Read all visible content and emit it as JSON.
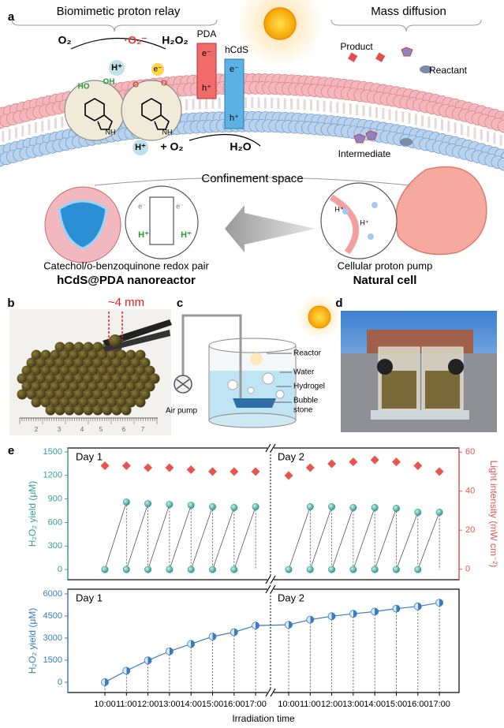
{
  "panel_labels": [
    "a",
    "b",
    "c",
    "d",
    "e"
  ],
  "panel_a": {
    "titles": [
      "Biomimetic proton relay",
      "Mass diffusion"
    ],
    "labels": [
      "O₂",
      "·O₂⁻",
      "H₂O₂",
      "PDA",
      "hCdS",
      "H⁺",
      "e⁻",
      "e⁻",
      "h⁺",
      "e⁻",
      "h⁺",
      "HO",
      "OH",
      "NH",
      "O",
      "O",
      "NH",
      "H⁺",
      "+ O₂",
      "H₂O",
      "Product",
      "Reactant",
      "Intermediate",
      "Confinement space",
      "e⁻",
      "e⁻",
      "H⁺",
      "H⁺",
      "H⁺",
      "H⁺"
    ],
    "captions": [
      {
        "line1": "Catechol/o-benzoquinone redox pair",
        "line2": "hCdS@PDA nanoreactor"
      },
      {
        "line1": "Cellular proton pump",
        "line2": "Natural cell"
      }
    ]
  },
  "panel_b": {
    "scale": "~4 mm",
    "ruler": [
      "2",
      "3",
      "4",
      "5",
      "6",
      "7"
    ]
  },
  "panel_c": {
    "labels": [
      "Reactor",
      "Water",
      "Hydrogel",
      "Air pump"
    ],
    "bubble_stone": [
      "Bubble",
      "stone"
    ]
  },
  "chart_data": [
    {
      "type": "scatter",
      "panels": [
        "Day 1",
        "Day 2"
      ],
      "ylabel": "H₂O₂ yield (μM)",
      "y2label": "Light intensity (mW cm⁻²)",
      "ylim": [
        -130,
        1550
      ],
      "yticks": [
        0,
        300,
        600,
        900,
        1200,
        1500
      ],
      "y2lim": [
        -5.4,
        62.1
      ],
      "y2ticks": [
        0,
        20,
        40,
        60
      ],
      "series": [
        {
          "color": "#35a196",
          "values": [
            0,
            0,
            0,
            0,
            0,
            0,
            0,
            null,
            0,
            0,
            0,
            0,
            0,
            0,
            0,
            null
          ]
        },
        {
          "color": "#35a196",
          "values": [
            null,
            860,
            840,
            830,
            820,
            800,
            790,
            800,
            null,
            800,
            800,
            790,
            790,
            780,
            730,
            730
          ]
        },
        {
          "color": "#e8544e",
          "axis": "y2",
          "values": [
            53,
            53,
            52,
            52,
            51,
            50,
            50,
            50,
            48,
            52,
            54,
            55,
            56,
            55,
            53,
            50
          ]
        }
      ]
    },
    {
      "type": "line",
      "panels": [
        "Day 1",
        "Day 2"
      ],
      "categories": [
        "10:00",
        "11:00",
        "12:00",
        "13:00",
        "14:00",
        "15:00",
        "16:00",
        "17:00",
        "10:00",
        "11:00",
        "12:00",
        "13:00",
        "14:00",
        "15:00",
        "16:00",
        "17:00"
      ],
      "xlabel": "Irradiation time",
      "ylabel": "H₂O₂ yield (μM)",
      "ylim": [
        -700,
        6320
      ],
      "yticks": [
        0,
        1500,
        3000,
        4500,
        6000
      ],
      "series": [
        {
          "color": "#3a7cc0",
          "values": [
            0,
            780,
            1480,
            2100,
            2600,
            3100,
            3400,
            3850,
            3900,
            4250,
            4480,
            4650,
            4800,
            5000,
            5150,
            5400
          ]
        }
      ]
    }
  ]
}
